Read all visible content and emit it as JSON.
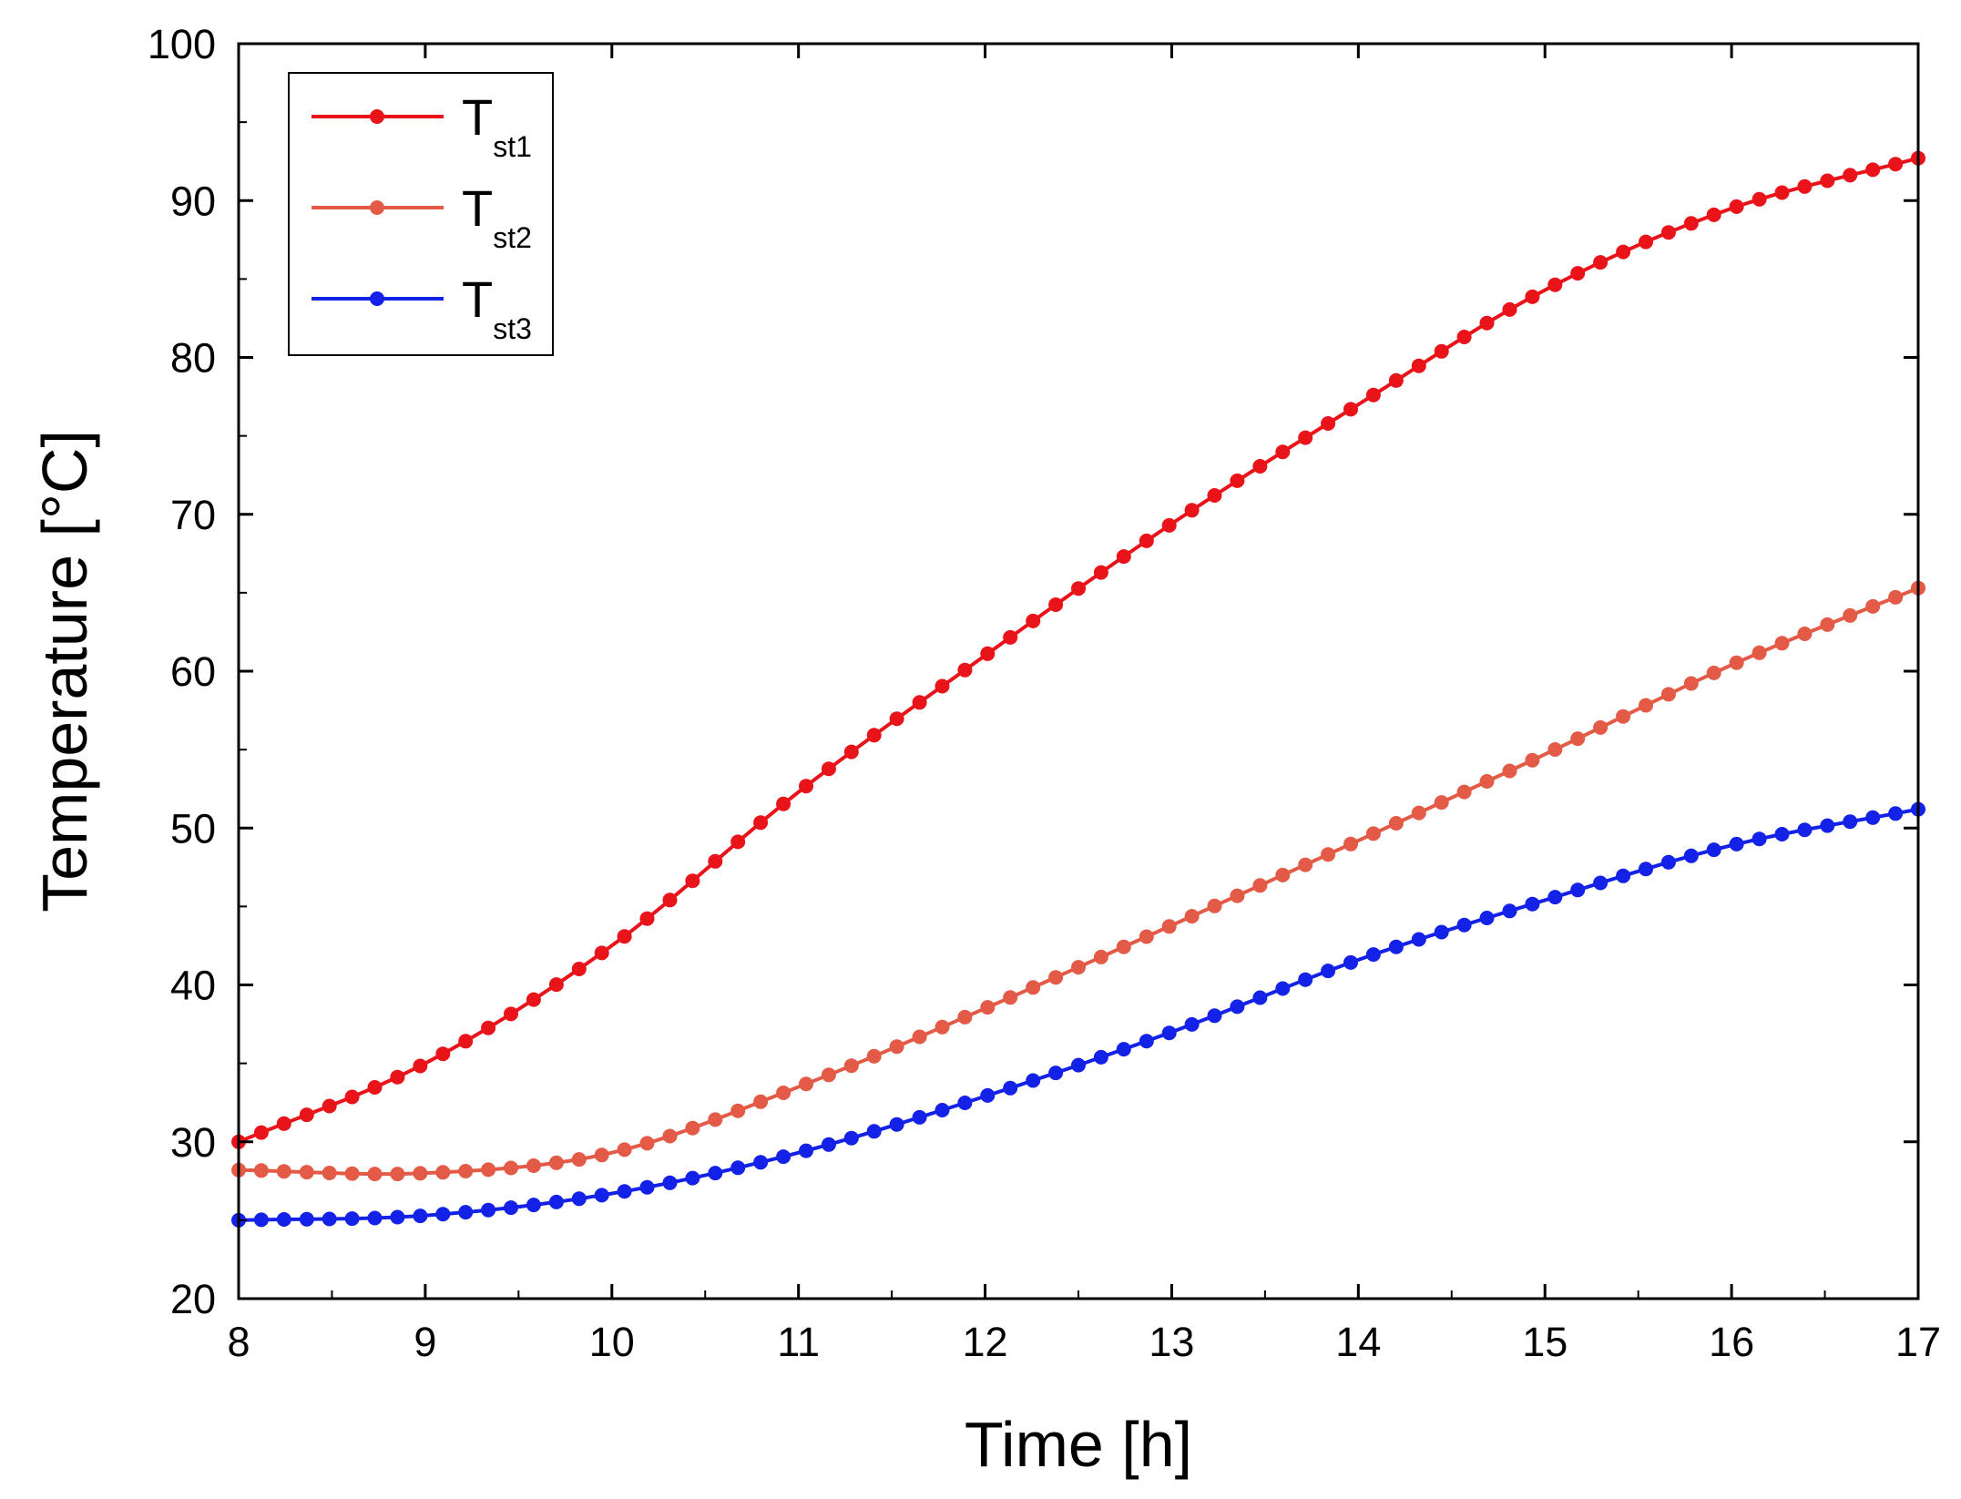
{
  "chart_data": {
    "type": "line",
    "title": "",
    "xlabel": "Time [h]",
    "ylabel": "Temperature [°C]",
    "xlim": [
      8,
      17
    ],
    "ylim": [
      20,
      100
    ],
    "xticks": [
      "8",
      "9",
      "10",
      "11",
      "12",
      "13",
      "14",
      "15",
      "16",
      "17"
    ],
    "yticks": [
      "20",
      "30",
      "40",
      "50",
      "60",
      "70",
      "80",
      "90",
      "100"
    ],
    "grid": false,
    "legend_position": "top-left",
    "x": [
      8,
      9,
      10,
      11,
      12,
      13,
      14,
      15,
      16,
      17
    ],
    "series": [
      {
        "name": "Tst1",
        "legend_main": "T",
        "legend_sub": "st1",
        "color": "#e8141a",
        "values": [
          30.0,
          35.0,
          42.5,
          52.3,
          61.0,
          69.4,
          77.0,
          84.3,
          89.5,
          92.7
        ]
      },
      {
        "name": "Tst2",
        "legend_main": "T",
        "legend_sub": "st2",
        "color": "#e35b47",
        "values": [
          28.2,
          28.0,
          29.3,
          33.5,
          38.5,
          43.8,
          49.2,
          54.7,
          60.4,
          65.3
        ]
      },
      {
        "name": "Tst3",
        "legend_main": "T",
        "legend_sub": "st3",
        "color": "#1422e8",
        "values": [
          25.0,
          25.3,
          26.7,
          29.3,
          32.9,
          37.0,
          41.6,
          45.4,
          48.9,
          51.2
        ]
      }
    ]
  }
}
